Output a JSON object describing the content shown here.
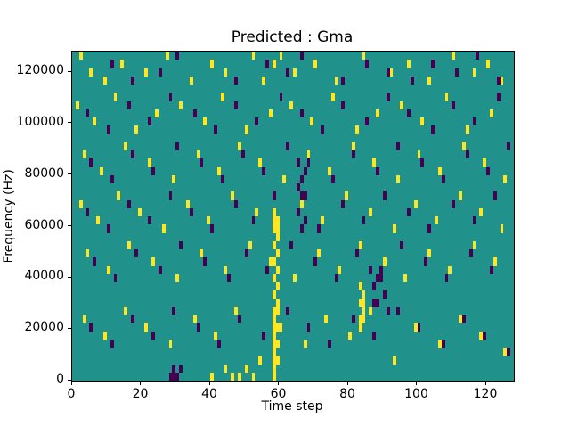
{
  "figure": {
    "title": "Predicted : Gma",
    "xlabel": "Time step",
    "ylabel": "Frequency (Hz)"
  },
  "chart_data": {
    "type": "heatmap",
    "title": "Predicted : Gma",
    "xlabel": "Time step",
    "ylabel": "Frequency (Hz)",
    "x_range": [
      0,
      128
    ],
    "y_range": [
      0,
      128000
    ],
    "grid_cols": 128,
    "grid_rows": 40,
    "x_ticks": [
      0,
      20,
      40,
      60,
      80,
      100,
      120
    ],
    "x_tick_labels": [
      "0",
      "20",
      "40",
      "60",
      "80",
      "100",
      "120"
    ],
    "y_ticks": [
      0,
      20000,
      40000,
      60000,
      80000,
      100000,
      120000
    ],
    "y_tick_labels": [
      "0",
      "20000",
      "40000",
      "60000",
      "80000",
      "100000",
      "120000"
    ],
    "legend_position": "none",
    "grid": false,
    "colors": {
      "background": "#21918c",
      "high": "#fde725",
      "low": "#440154"
    },
    "cells": {
      "yellow": [
        [
          2,
          39
        ],
        [
          5,
          37
        ],
        [
          9,
          36
        ],
        [
          14,
          38
        ],
        [
          21,
          37
        ],
        [
          27,
          39
        ],
        [
          34,
          36
        ],
        [
          40,
          38
        ],
        [
          44,
          37
        ],
        [
          52,
          39
        ],
        [
          55,
          36
        ],
        [
          58,
          38
        ],
        [
          60,
          39
        ],
        [
          64,
          37
        ],
        [
          70,
          38
        ],
        [
          76,
          36
        ],
        [
          84,
          39
        ],
        [
          92,
          37
        ],
        [
          97,
          38
        ],
        [
          103,
          36
        ],
        [
          110,
          39
        ],
        [
          116,
          37
        ],
        [
          120,
          38
        ],
        [
          124,
          36
        ],
        [
          1,
          33
        ],
        [
          6,
          31
        ],
        [
          12,
          34
        ],
        [
          18,
          30
        ],
        [
          24,
          32
        ],
        [
          31,
          33
        ],
        [
          38,
          31
        ],
        [
          43,
          34
        ],
        [
          50,
          30
        ],
        [
          57,
          32
        ],
        [
          63,
          33
        ],
        [
          69,
          31
        ],
        [
          75,
          34
        ],
        [
          82,
          30
        ],
        [
          88,
          32
        ],
        [
          95,
          33
        ],
        [
          101,
          31
        ],
        [
          108,
          34
        ],
        [
          114,
          30
        ],
        [
          121,
          32
        ],
        [
          3,
          27
        ],
        [
          8,
          25
        ],
        [
          15,
          28
        ],
        [
          22,
          26
        ],
        [
          29,
          24
        ],
        [
          36,
          27
        ],
        [
          42,
          25
        ],
        [
          48,
          28
        ],
        [
          54,
          26
        ],
        [
          61,
          24
        ],
        [
          68,
          27
        ],
        [
          74,
          25
        ],
        [
          81,
          28
        ],
        [
          87,
          26
        ],
        [
          94,
          24
        ],
        [
          100,
          27
        ],
        [
          106,
          25
        ],
        [
          113,
          28
        ],
        [
          119,
          26
        ],
        [
          125,
          24
        ],
        [
          2,
          21
        ],
        [
          7,
          19
        ],
        [
          13,
          22
        ],
        [
          19,
          20
        ],
        [
          26,
          18
        ],
        [
          33,
          21
        ],
        [
          39,
          19
        ],
        [
          46,
          22
        ],
        [
          53,
          20
        ],
        [
          59,
          18
        ],
        [
          66,
          21
        ],
        [
          72,
          19
        ],
        [
          79,
          22
        ],
        [
          86,
          20
        ],
        [
          93,
          18
        ],
        [
          99,
          21
        ],
        [
          105,
          19
        ],
        [
          112,
          22
        ],
        [
          118,
          20
        ],
        [
          124,
          18
        ],
        [
          4,
          15
        ],
        [
          10,
          13
        ],
        [
          16,
          16
        ],
        [
          23,
          14
        ],
        [
          30,
          12
        ],
        [
          37,
          15
        ],
        [
          44,
          13
        ],
        [
          51,
          16
        ],
        [
          57,
          14
        ],
        [
          64,
          12
        ],
        [
          71,
          15
        ],
        [
          77,
          13
        ],
        [
          83,
          16
        ],
        [
          90,
          14
        ],
        [
          96,
          12
        ],
        [
          103,
          15
        ],
        [
          109,
          13
        ],
        [
          116,
          16
        ],
        [
          122,
          14
        ],
        [
          3,
          7
        ],
        [
          9,
          5
        ],
        [
          15,
          8
        ],
        [
          21,
          6
        ],
        [
          28,
          4
        ],
        [
          35,
          7
        ],
        [
          41,
          5
        ],
        [
          47,
          8
        ],
        [
          54,
          2
        ],
        [
          60,
          6
        ],
        [
          67,
          4
        ],
        [
          73,
          7
        ],
        [
          80,
          5
        ],
        [
          86,
          8
        ],
        [
          93,
          2
        ],
        [
          99,
          6
        ],
        [
          106,
          4
        ],
        [
          112,
          7
        ],
        [
          118,
          5
        ],
        [
          125,
          3
        ],
        [
          40,
          0
        ],
        [
          44,
          1
        ],
        [
          46,
          0
        ],
        [
          48,
          0
        ],
        [
          50,
          1
        ],
        [
          52,
          0
        ],
        [
          58,
          0
        ],
        [
          58,
          1
        ],
        [
          58,
          2
        ],
        [
          58,
          3
        ],
        [
          58,
          4
        ],
        [
          58,
          5
        ],
        [
          58,
          6
        ],
        [
          58,
          7
        ],
        [
          58,
          8
        ],
        [
          58,
          10
        ],
        [
          58,
          12
        ],
        [
          58,
          14
        ],
        [
          58,
          16
        ],
        [
          58,
          18
        ],
        [
          58,
          19
        ],
        [
          58,
          20
        ],
        [
          59,
          2
        ],
        [
          59,
          4
        ],
        [
          59,
          6
        ],
        [
          59,
          8
        ],
        [
          59,
          9
        ],
        [
          59,
          11
        ],
        [
          59,
          13
        ],
        [
          59,
          15
        ],
        [
          59,
          17
        ],
        [
          59,
          19
        ],
        [
          83,
          6
        ],
        [
          83,
          7
        ],
        [
          83,
          9
        ],
        [
          83,
          11
        ],
        [
          84,
          7
        ],
        [
          84,
          8
        ],
        [
          84,
          9
        ],
        [
          84,
          10
        ]
      ],
      "purple": [
        [
          11,
          38
        ],
        [
          17,
          36
        ],
        [
          25,
          37
        ],
        [
          30,
          39
        ],
        [
          47,
          36
        ],
        [
          56,
          38
        ],
        [
          62,
          37
        ],
        [
          66,
          39
        ],
        [
          78,
          36
        ],
        [
          85,
          38
        ],
        [
          91,
          37
        ],
        [
          98,
          36
        ],
        [
          104,
          38
        ],
        [
          111,
          37
        ],
        [
          117,
          39
        ],
        [
          123,
          36
        ],
        [
          4,
          32
        ],
        [
          10,
          30
        ],
        [
          16,
          33
        ],
        [
          22,
          31
        ],
        [
          28,
          34
        ],
        [
          35,
          32
        ],
        [
          41,
          30
        ],
        [
          47,
          33
        ],
        [
          53,
          31
        ],
        [
          60,
          34
        ],
        [
          66,
          32
        ],
        [
          72,
          30
        ],
        [
          78,
          33
        ],
        [
          85,
          31
        ],
        [
          91,
          34
        ],
        [
          97,
          32
        ],
        [
          104,
          30
        ],
        [
          110,
          33
        ],
        [
          116,
          31
        ],
        [
          123,
          34
        ],
        [
          5,
          26
        ],
        [
          11,
          24
        ],
        [
          17,
          27
        ],
        [
          23,
          25
        ],
        [
          30,
          28
        ],
        [
          37,
          26
        ],
        [
          43,
          24
        ],
        [
          49,
          27
        ],
        [
          55,
          25
        ],
        [
          62,
          28
        ],
        [
          68,
          26
        ],
        [
          75,
          24
        ],
        [
          81,
          27
        ],
        [
          88,
          25
        ],
        [
          94,
          28
        ],
        [
          101,
          26
        ],
        [
          107,
          24
        ],
        [
          114,
          27
        ],
        [
          120,
          25
        ],
        [
          126,
          28
        ],
        [
          4,
          20
        ],
        [
          10,
          18
        ],
        [
          16,
          21
        ],
        [
          22,
          19
        ],
        [
          28,
          22
        ],
        [
          34,
          20
        ],
        [
          40,
          18
        ],
        [
          47,
          21
        ],
        [
          52,
          19
        ],
        [
          58,
          22
        ],
        [
          65,
          20
        ],
        [
          71,
          18
        ],
        [
          78,
          21
        ],
        [
          84,
          19
        ],
        [
          90,
          22
        ],
        [
          97,
          20
        ],
        [
          103,
          18
        ],
        [
          110,
          21
        ],
        [
          116,
          19
        ],
        [
          122,
          22
        ],
        [
          6,
          14
        ],
        [
          12,
          12
        ],
        [
          18,
          15
        ],
        [
          25,
          13
        ],
        [
          31,
          16
        ],
        [
          38,
          14
        ],
        [
          45,
          12
        ],
        [
          50,
          15
        ],
        [
          56,
          13
        ],
        [
          63,
          16
        ],
        [
          70,
          14
        ],
        [
          76,
          12
        ],
        [
          82,
          15
        ],
        [
          89,
          13
        ],
        [
          95,
          16
        ],
        [
          102,
          14
        ],
        [
          108,
          12
        ],
        [
          115,
          15
        ],
        [
          121,
          13
        ],
        [
          5,
          6
        ],
        [
          11,
          4
        ],
        [
          17,
          7
        ],
        [
          23,
          5
        ],
        [
          29,
          8
        ],
        [
          36,
          6
        ],
        [
          42,
          4
        ],
        [
          48,
          7
        ],
        [
          55,
          5
        ],
        [
          62,
          8
        ],
        [
          68,
          6
        ],
        [
          74,
          4
        ],
        [
          81,
          7
        ],
        [
          87,
          5
        ],
        [
          94,
          8
        ],
        [
          100,
          6
        ],
        [
          107,
          4
        ],
        [
          113,
          7
        ],
        [
          119,
          5
        ],
        [
          126,
          3
        ],
        [
          65,
          26
        ],
        [
          65,
          23
        ],
        [
          66,
          24
        ],
        [
          66,
          22
        ],
        [
          66,
          18
        ],
        [
          67,
          22
        ],
        [
          67,
          25
        ],
        [
          67,
          19
        ],
        [
          86,
          13
        ],
        [
          87,
          11
        ],
        [
          87,
          9
        ],
        [
          88,
          9
        ],
        [
          88,
          12
        ],
        [
          89,
          12
        ],
        [
          90,
          10
        ],
        [
          91,
          8
        ],
        [
          28,
          0
        ],
        [
          29,
          1
        ],
        [
          29,
          0
        ],
        [
          30,
          0
        ],
        [
          31,
          1
        ]
      ]
    }
  }
}
